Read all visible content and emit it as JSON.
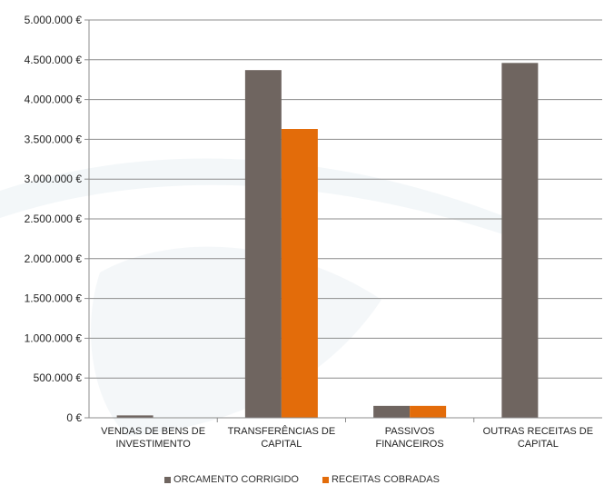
{
  "chart_data": {
    "type": "bar",
    "categories": [
      [
        "VENDAS DE BENS DE",
        "INVESTIMENTO"
      ],
      [
        "TRANSFERÊNCIAS DE",
        "CAPITAL"
      ],
      [
        "PASSIVOS",
        "FINANCEIROS"
      ],
      [
        "OUTRAS RECEITAS DE",
        "CAPITAL"
      ]
    ],
    "series": [
      {
        "name": "ORCAMENTO CORRIGIDO",
        "color": "#6f6560",
        "values": [
          30000,
          4370000,
          150000,
          4460000
        ]
      },
      {
        "name": "RECEITAS COBRADAS",
        "color": "#e36c0a",
        "values": [
          0,
          3630000,
          150000,
          0
        ]
      }
    ],
    "y_ticks": [
      "0 €",
      "500.000 €",
      "1.000.000 €",
      "1.500.000 €",
      "2.000.000 €",
      "2.500.000 €",
      "3.000.000 €",
      "3.500.000 €",
      "4.000.000 €",
      "4.500.000 €",
      "5.000.000 €"
    ],
    "ylim": [
      0,
      5000000
    ],
    "grid": true,
    "legend": "bottom"
  }
}
